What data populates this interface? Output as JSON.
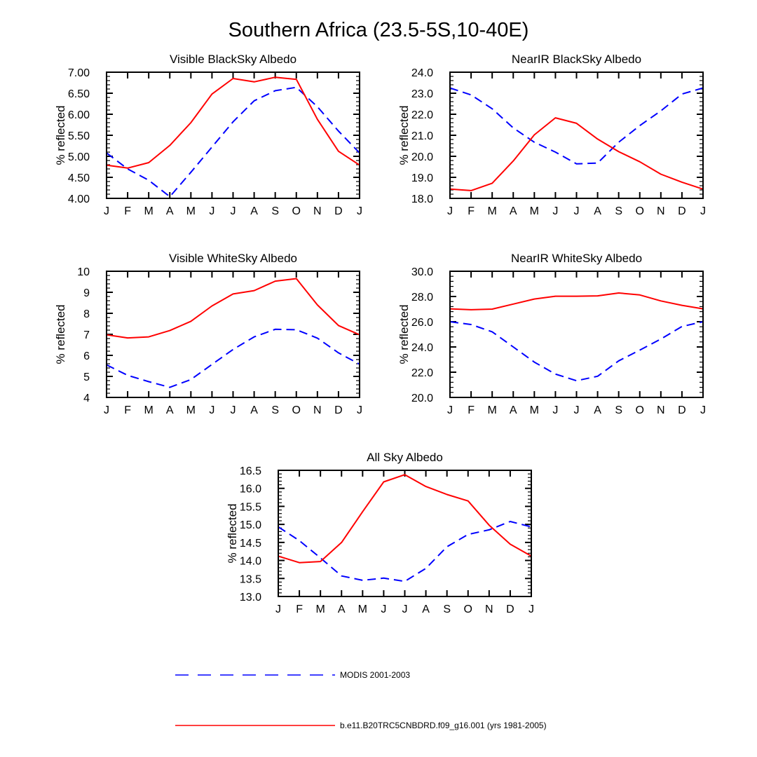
{
  "figure": {
    "title": "Southern Africa (23.5-5S,10-40E)"
  },
  "legend": {
    "items": [
      {
        "label": "MODIS 2001-2003",
        "color": "#0000ff",
        "dash": "dashed"
      },
      {
        "label": "b.e11.B20TRC5CNBDRD.f09_g16.001 (yrs 1981-2005)",
        "color": "#ff0000",
        "dash": "solid"
      }
    ]
  },
  "chart_data": [
    {
      "type": "line",
      "title": "Visible BlackSky Albedo",
      "ylabel": "% reflected",
      "xlabel": "",
      "categories": [
        "J",
        "F",
        "M",
        "A",
        "M",
        "J",
        "J",
        "A",
        "S",
        "O",
        "N",
        "D",
        "J"
      ],
      "ylim": [
        4.0,
        7.0
      ],
      "yticks": [
        "4.00",
        "4.50",
        "5.00",
        "5.50",
        "6.00",
        "6.50",
        "7.00"
      ],
      "series": [
        {
          "name": "MODIS 2001-2003",
          "values": [
            5.08,
            4.7,
            4.43,
            4.04,
            4.62,
            5.22,
            5.82,
            6.32,
            6.56,
            6.64,
            6.18,
            5.6,
            5.08
          ]
        },
        {
          "name": "b.e11.B20TRC5CNBDRD.f09_g16.001 (yrs 1981-2005)",
          "values": [
            4.79,
            4.72,
            4.85,
            5.26,
            5.8,
            6.48,
            6.85,
            6.77,
            6.88,
            6.83,
            5.88,
            5.12,
            4.79
          ]
        }
      ]
    },
    {
      "type": "line",
      "title": "NearIR BlackSky Albedo",
      "ylabel": "% reflected",
      "xlabel": "",
      "categories": [
        "J",
        "F",
        "M",
        "A",
        "M",
        "J",
        "J",
        "A",
        "S",
        "O",
        "N",
        "D",
        "J"
      ],
      "ylim": [
        18.0,
        24.0
      ],
      "yticks": [
        "18.0",
        "19.0",
        "20.0",
        "21.0",
        "22.0",
        "23.0",
        "24.0"
      ],
      "series": [
        {
          "name": "MODIS 2001-2003",
          "values": [
            23.25,
            22.92,
            22.26,
            21.35,
            20.67,
            20.2,
            19.64,
            19.68,
            20.67,
            21.46,
            22.16,
            22.96,
            23.25
          ]
        },
        {
          "name": "b.e11.B20TRC5CNBDRD.f09_g16.001 (yrs 1981-2005)",
          "values": [
            18.44,
            18.37,
            18.72,
            19.78,
            21.02,
            21.83,
            21.57,
            20.82,
            20.22,
            19.74,
            19.15,
            18.77,
            18.44
          ]
        }
      ]
    },
    {
      "type": "line",
      "title": "Visible WhiteSky Albedo",
      "ylabel": "% reflected",
      "xlabel": "",
      "categories": [
        "J",
        "F",
        "M",
        "A",
        "M",
        "J",
        "J",
        "A",
        "S",
        "O",
        "N",
        "D",
        "J"
      ],
      "ylim": [
        4,
        10
      ],
      "yticks": [
        "4",
        "5",
        "6",
        "7",
        "8",
        "9",
        "10"
      ],
      "series": [
        {
          "name": "MODIS 2001-2003",
          "values": [
            5.55,
            5.05,
            4.75,
            4.48,
            4.85,
            5.57,
            6.28,
            6.88,
            7.24,
            7.22,
            6.82,
            6.12,
            5.58
          ]
        },
        {
          "name": "b.e11.B20TRC5CNBDRD.f09_g16.001 (yrs 1981-2005)",
          "values": [
            6.98,
            6.83,
            6.88,
            7.18,
            7.62,
            8.35,
            8.92,
            9.08,
            9.53,
            9.65,
            8.4,
            7.42,
            6.98
          ]
        }
      ]
    },
    {
      "type": "line",
      "title": "NearIR WhiteSky Albedo",
      "ylabel": "% reflected",
      "xlabel": "",
      "categories": [
        "J",
        "F",
        "M",
        "A",
        "M",
        "J",
        "J",
        "A",
        "S",
        "O",
        "N",
        "D",
        "J"
      ],
      "ylim": [
        20.0,
        30.0
      ],
      "yticks": [
        "20.0",
        "22.0",
        "24.0",
        "26.0",
        "28.0",
        "30.0"
      ],
      "series": [
        {
          "name": "MODIS 2001-2003",
          "values": [
            26.0,
            25.78,
            25.2,
            24.0,
            22.8,
            21.85,
            21.32,
            21.68,
            22.9,
            23.75,
            24.63,
            25.62,
            26.0
          ]
        },
        {
          "name": "b.e11.B20TRC5CNBDRD.f09_g16.001 (yrs 1981-2005)",
          "values": [
            27.02,
            26.95,
            27.0,
            27.4,
            27.8,
            28.02,
            28.02,
            28.05,
            28.28,
            28.12,
            27.65,
            27.3,
            27.02
          ]
        }
      ]
    },
    {
      "type": "line",
      "title": "All Sky Albedo",
      "ylabel": "% reflected",
      "xlabel": "",
      "categories": [
        "J",
        "F",
        "M",
        "A",
        "M",
        "J",
        "J",
        "A",
        "S",
        "O",
        "N",
        "D",
        "J"
      ],
      "ylim": [
        13.0,
        16.5
      ],
      "yticks": [
        "13.0",
        "13.5",
        "14.0",
        "14.5",
        "15.0",
        "15.5",
        "16.0",
        "16.5"
      ],
      "series": [
        {
          "name": "MODIS 2001-2003",
          "values": [
            14.93,
            14.55,
            14.07,
            13.57,
            13.45,
            13.51,
            13.42,
            13.78,
            14.38,
            14.72,
            14.85,
            15.08,
            14.93
          ]
        },
        {
          "name": "b.e11.B20TRC5CNBDRD.f09_g16.001 (yrs 1981-2005)",
          "values": [
            14.12,
            13.94,
            13.97,
            14.5,
            15.35,
            16.18,
            16.38,
            16.05,
            15.83,
            15.65,
            14.98,
            14.45,
            14.12
          ]
        }
      ]
    }
  ]
}
